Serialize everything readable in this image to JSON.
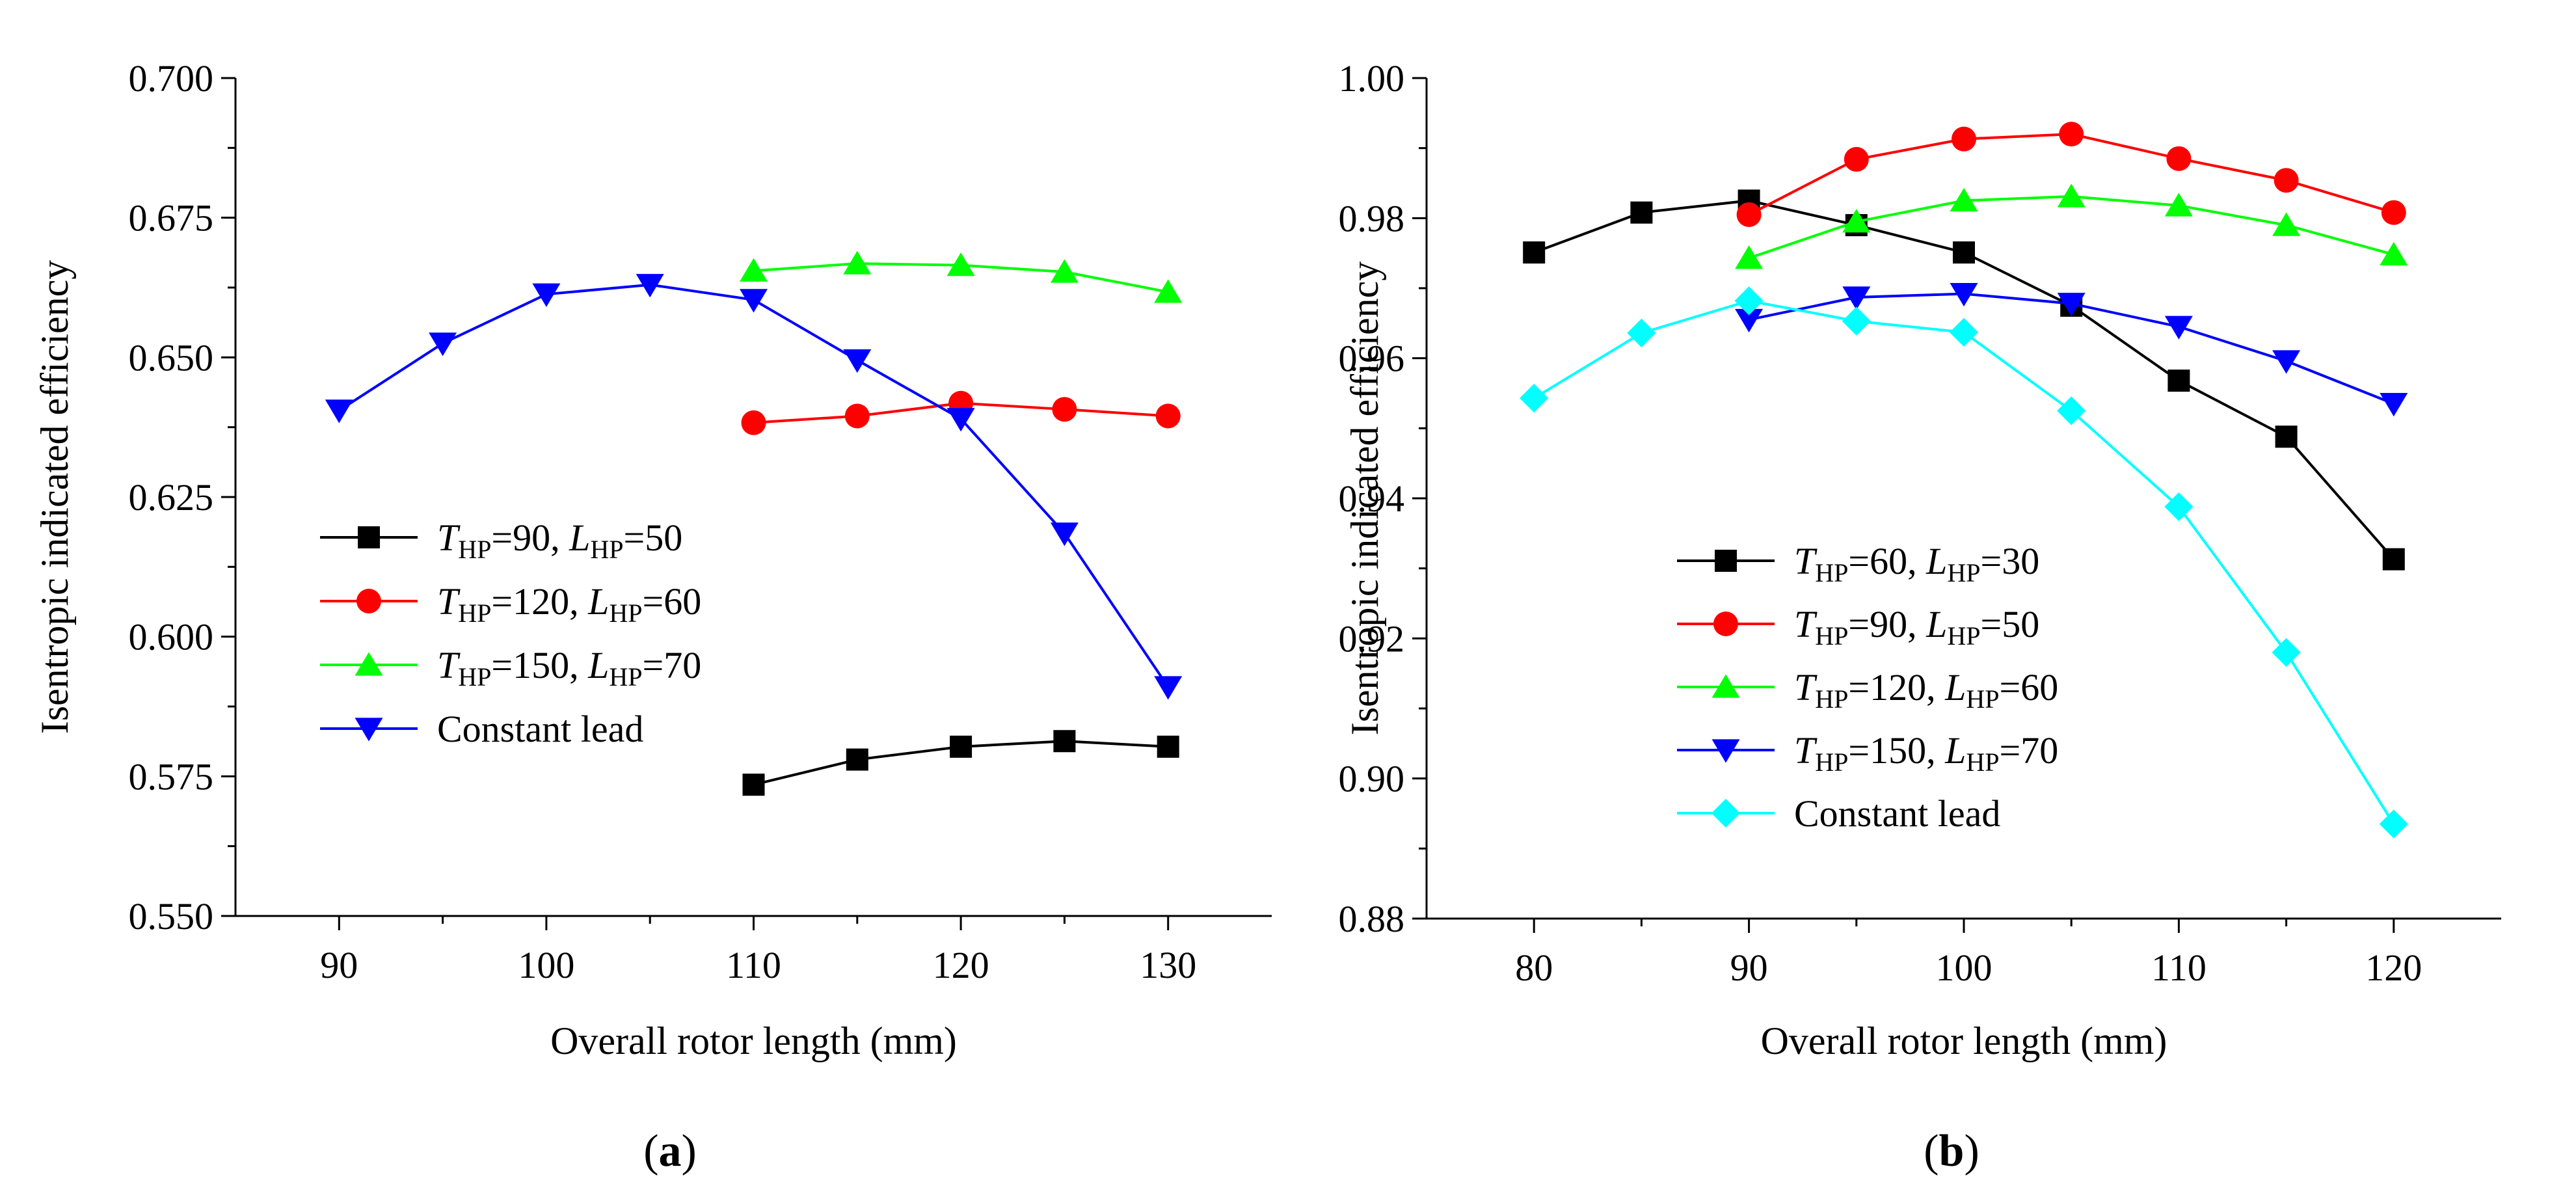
{
  "chart_data": [
    {
      "type": "line",
      "panel_label": "a",
      "xlabel": "Overall rotor length (mm)",
      "ylabel": "Isentropic indicated efficiency",
      "xlim": [
        85,
        135
      ],
      "ylim": [
        0.55,
        0.7
      ],
      "xticks": [
        90,
        100,
        110,
        120,
        130
      ],
      "yticks": [
        0.55,
        0.575,
        0.6,
        0.625,
        0.65,
        0.675,
        0.7
      ],
      "ytick_labels": [
        "0.550",
        "0.575",
        "0.600",
        "0.625",
        "0.650",
        "0.675",
        "0.700"
      ],
      "grid": false,
      "legend_position": "lower-left",
      "series": [
        {
          "legend": {
            "t": "90",
            "l": "50"
          },
          "color": "#000000",
          "marker": "square",
          "x": [
            110,
            115,
            120,
            125,
            130
          ],
          "y": [
            0.5735,
            0.578,
            0.5803,
            0.5813,
            0.5803
          ]
        },
        {
          "legend": {
            "t": "120",
            "l": "60"
          },
          "color": "#ff0000",
          "marker": "circle",
          "x": [
            110,
            115,
            120,
            125,
            130
          ],
          "y": [
            0.6383,
            0.6395,
            0.6418,
            0.6407,
            0.6395
          ]
        },
        {
          "legend": {
            "t": "150",
            "l": "70"
          },
          "color": "#00ff00",
          "marker": "triangle-up",
          "x": [
            110,
            115,
            120,
            125,
            130
          ],
          "y": [
            0.6655,
            0.6668,
            0.6665,
            0.6653,
            0.6617
          ]
        },
        {
          "name": "Constant lead",
          "color": "#0000ff",
          "marker": "triangle-down",
          "x": [
            90,
            95,
            100,
            105,
            110,
            115,
            120,
            125,
            130
          ],
          "y": [
            0.6405,
            0.6525,
            0.6613,
            0.663,
            0.6603,
            0.6495,
            0.639,
            0.6185,
            0.591
          ]
        }
      ]
    },
    {
      "type": "line",
      "panel_label": "b",
      "xlabel": "Overall rotor length (mm)",
      "ylabel": "Isentropic indicated efficiency",
      "xlim": [
        75,
        125
      ],
      "ylim": [
        0.88,
        1.0
      ],
      "xticks": [
        80,
        90,
        100,
        110,
        120
      ],
      "yticks": [
        0.88,
        0.9,
        0.92,
        0.94,
        0.96,
        0.98,
        1.0
      ],
      "ytick_labels": [
        "0.88",
        "0.90",
        "0.92",
        "0.94",
        "0.96",
        "0.98",
        "1.00"
      ],
      "grid": false,
      "legend_position": "lower-left",
      "series": [
        {
          "legend": {
            "t": "60",
            "l": "30"
          },
          "color": "#000000",
          "marker": "square",
          "x": [
            80,
            85,
            90,
            95,
            100,
            105,
            110,
            115,
            120
          ],
          "y": [
            0.9751,
            0.9808,
            0.9825,
            0.979,
            0.9751,
            0.9675,
            0.9568,
            0.9488,
            0.9313
          ]
        },
        {
          "legend": {
            "t": "90",
            "l": "50"
          },
          "color": "#ff0000",
          "marker": "circle",
          "x": [
            90,
            95,
            100,
            105,
            110,
            115,
            120
          ],
          "y": [
            0.9805,
            0.9884,
            0.9913,
            0.992,
            0.9885,
            0.9854,
            0.9808
          ]
        },
        {
          "legend": {
            "t": "120",
            "l": "60"
          },
          "color": "#00ff00",
          "marker": "triangle-up",
          "x": [
            90,
            95,
            100,
            105,
            110,
            115,
            120
          ],
          "y": [
            0.9743,
            0.9795,
            0.9825,
            0.9831,
            0.9818,
            0.979,
            0.9748
          ]
        },
        {
          "legend": {
            "t": "150",
            "l": "70"
          },
          "color": "#0000ff",
          "marker": "triangle-down",
          "x": [
            90,
            95,
            100,
            105,
            110,
            115,
            120
          ],
          "y": [
            0.9655,
            0.9687,
            0.9692,
            0.9678,
            0.9645,
            0.9596,
            0.9535
          ]
        },
        {
          "name": "Constant lead",
          "color": "#00ffff",
          "marker": "diamond",
          "x": [
            80,
            85,
            90,
            95,
            100,
            105,
            110,
            115,
            120
          ],
          "y": [
            0.9543,
            0.9636,
            0.9682,
            0.9653,
            0.9637,
            0.9525,
            0.9388,
            0.918,
            0.8935
          ]
        }
      ]
    }
  ]
}
